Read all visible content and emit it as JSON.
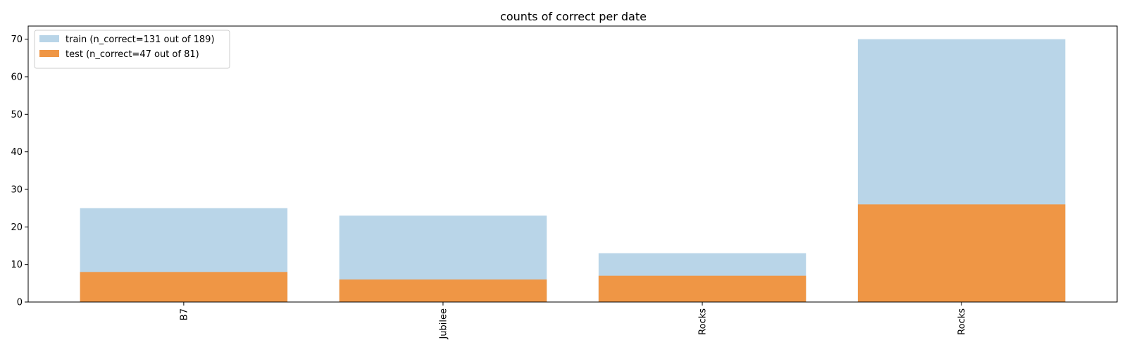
{
  "chart_data": {
    "type": "bar",
    "title": "counts of correct per date",
    "xlabel": "",
    "ylabel": "",
    "categories": [
      "B7",
      "Jubilee",
      "Rocks",
      "Rocks"
    ],
    "series": [
      {
        "name": "train (n_correct=131 out of 189)",
        "values": [
          25,
          23,
          13,
          70
        ],
        "color": "#b9d5e8"
      },
      {
        "name": "test (n_correct=47 out of 81)",
        "values": [
          8,
          6,
          7,
          26
        ],
        "color": "#ef9645"
      }
    ],
    "ylim": [
      0,
      73.5
    ],
    "yticks": [
      0,
      10,
      20,
      30,
      40,
      50,
      60,
      70
    ],
    "grid": false,
    "legend_position": "top-left",
    "x_tick_rotation": -90
  }
}
